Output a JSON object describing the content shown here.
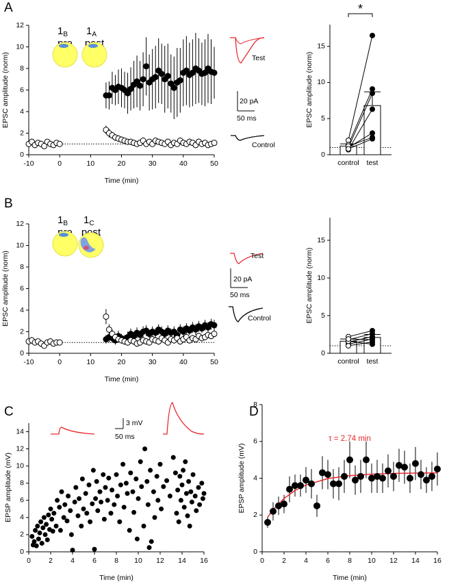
{
  "chart_data": [
    {
      "type": "scatter",
      "panel_label": "A",
      "xlabel": "Time (min)",
      "ylabel": "EPSC amplitude (norm)",
      "xlim": [
        -10,
        50
      ],
      "ylim": [
        0,
        12
      ],
      "xticks": [
        -10,
        0,
        10,
        20,
        30,
        40,
        50
      ],
      "yticks": [
        0,
        2,
        4,
        6,
        8,
        10,
        12
      ],
      "reference_line": 1,
      "cells": [
        {
          "number": "1",
          "sub": "B",
          "role": "pre"
        },
        {
          "number": "1",
          "sub": "A",
          "role": "post"
        }
      ],
      "traces": {
        "test": "Test",
        "control": "Control",
        "scale_y": "20 pA",
        "scale_x": "50 ms"
      },
      "series": [
        {
          "marker": "filled",
          "color": "#000000",
          "x": [
            15,
            16,
            17,
            18,
            19,
            20,
            21,
            22,
            23,
            24,
            25,
            26,
            27,
            28,
            29,
            30,
            31,
            32,
            33,
            34,
            35,
            36,
            37,
            38,
            39,
            40,
            41,
            42,
            43,
            44,
            45,
            46,
            47,
            48,
            49,
            50
          ],
          "values": [
            5.5,
            5.5,
            6.2,
            6.0,
            6.3,
            6.2,
            6.0,
            5.7,
            6.1,
            6.5,
            6.8,
            6.4,
            7.0,
            8.2,
            6.7,
            7.0,
            7.2,
            7.8,
            7.5,
            7.0,
            7.3,
            6.6,
            6.2,
            6.7,
            6.9,
            7.6,
            7.8,
            7.4,
            7.6,
            8.0,
            7.8,
            7.5,
            7.6,
            8.0,
            7.7,
            7.6
          ],
          "errors": [
            1.2,
            1.3,
            1.5,
            1.4,
            1.6,
            1.8,
            1.7,
            1.9,
            2.0,
            2.2,
            2.4,
            2.3,
            2.5,
            2.7,
            2.6,
            2.8,
            2.9,
            3.0,
            2.8,
            3.1,
            3.0,
            2.7,
            2.9,
            3.2,
            3.0,
            3.1,
            3.2,
            3.0,
            3.1,
            3.3,
            3.0,
            2.9,
            3.1,
            3.2,
            3.0,
            2.4
          ]
        },
        {
          "marker": "open",
          "color": "#000000",
          "x": [
            -10,
            -9,
            -8,
            -7,
            -6,
            -5,
            -4,
            -3,
            -2,
            -1,
            0,
            15,
            16,
            17,
            18,
            19,
            20,
            21,
            22,
            23,
            24,
            25,
            26,
            27,
            28,
            29,
            30,
            31,
            32,
            33,
            34,
            35,
            36,
            37,
            38,
            39,
            40,
            41,
            42,
            43,
            44,
            45,
            46,
            47,
            48,
            49,
            50
          ],
          "values": [
            1.0,
            1.2,
            0.9,
            1.1,
            1.0,
            0.8,
            1.2,
            1.0,
            0.9,
            1.1,
            1.0,
            2.3,
            2.0,
            1.8,
            1.6,
            1.5,
            1.4,
            1.3,
            1.2,
            1.2,
            1.1,
            1.0,
            1.1,
            1.3,
            1.0,
            1.2,
            1.0,
            1.3,
            1.2,
            1.1,
            1.0,
            1.2,
            0.9,
            1.1,
            1.0,
            1.3,
            1.1,
            1.0,
            1.2,
            1.1,
            0.9,
            1.2,
            1.0,
            1.1,
            0.9,
            1.0,
            1.1
          ],
          "errors": [
            0.2,
            0.3,
            0.2,
            0.2,
            0.3,
            0.2,
            0.2,
            0.3,
            0.2,
            0.2,
            0.2,
            0.4,
            0.4,
            0.3,
            0.3,
            0.3,
            0.3,
            0.2,
            0.2,
            0.3,
            0.2,
            0.2,
            0.2,
            0.3,
            0.2,
            0.2,
            0.2,
            0.3,
            0.2,
            0.2,
            0.2,
            0.3,
            0.2,
            0.2,
            0.2,
            0.3,
            0.2,
            0.2,
            0.3,
            0.2,
            0.2,
            0.3,
            0.2,
            0.2,
            0.2,
            0.2,
            0.2
          ]
        }
      ]
    },
    {
      "type": "bar",
      "ylabel": "EPSC amplitude (norm)",
      "categories": [
        "control",
        "test"
      ],
      "values": [
        1.2,
        6.8
      ],
      "errors": [
        0.3,
        1.9
      ],
      "points": [
        [
          2.0,
          1.4,
          1.0,
          0.7,
          1.0,
          1.2,
          0.8
        ],
        [
          16.5,
          9.1,
          8.5,
          6.3,
          3.0,
          2.4,
          2.2
        ]
      ],
      "ylim": [
        0,
        18
      ],
      "yticks": [
        0,
        5,
        10,
        15
      ],
      "reference_line": 1,
      "significance": "*"
    },
    {
      "type": "scatter",
      "panel_label": "B",
      "xlabel": "Time (min)",
      "ylabel": "EPSC amplitude (norm)",
      "xlim": [
        -10,
        50
      ],
      "ylim": [
        0,
        12
      ],
      "xticks": [
        -10,
        0,
        10,
        20,
        30,
        40,
        50
      ],
      "yticks": [
        0,
        2,
        4,
        6,
        8,
        10,
        12
      ],
      "reference_line": 1,
      "cells": [
        {
          "number": "1",
          "sub": "B",
          "role": "pre"
        },
        {
          "number": "1",
          "sub": "C",
          "role": "post"
        }
      ],
      "traces": {
        "test": "Test",
        "control": "Control",
        "scale_y": "20 pA",
        "scale_x": "50 ms"
      },
      "series": [
        {
          "marker": "filled",
          "color": "#000000",
          "x": [
            15,
            16,
            17,
            18,
            19,
            20,
            21,
            22,
            23,
            24,
            25,
            26,
            27,
            28,
            29,
            30,
            31,
            32,
            33,
            34,
            35,
            36,
            37,
            38,
            39,
            40,
            41,
            42,
            43,
            44,
            45,
            46,
            47,
            48,
            49,
            50
          ],
          "values": [
            1.3,
            1.5,
            1.4,
            1.2,
            1.6,
            1.4,
            1.3,
            1.5,
            1.8,
            1.6,
            1.9,
            1.7,
            2.0,
            2.1,
            1.8,
            2.0,
            1.9,
            2.2,
            2.0,
            1.8,
            2.1,
            1.9,
            2.0,
            1.7,
            2.2,
            2.0,
            2.3,
            2.1,
            2.4,
            2.2,
            2.5,
            2.3,
            2.6,
            2.4,
            2.7,
            2.6
          ],
          "errors": [
            0.4,
            0.5,
            0.4,
            0.4,
            0.5,
            0.4,
            0.4,
            0.5,
            0.5,
            0.4,
            0.5,
            0.4,
            0.5,
            0.5,
            0.4,
            0.5,
            0.4,
            0.5,
            0.5,
            0.4,
            0.5,
            0.4,
            0.5,
            0.4,
            0.5,
            0.5,
            0.5,
            0.4,
            0.5,
            0.5,
            0.5,
            0.4,
            0.5,
            0.5,
            0.5,
            0.5
          ]
        },
        {
          "marker": "open",
          "color": "#000000",
          "x": [
            -10,
            -9,
            -8,
            -7,
            -6,
            -5,
            -4,
            -3,
            -2,
            -1,
            0,
            15,
            16,
            17,
            18,
            19,
            20,
            21,
            22,
            23,
            24,
            25,
            26,
            27,
            28,
            29,
            30,
            31,
            32,
            33,
            34,
            35,
            36,
            37,
            38,
            39,
            40,
            41,
            42,
            43,
            44,
            45,
            46,
            47,
            48,
            49,
            50
          ],
          "values": [
            1.1,
            1.2,
            1.0,
            1.1,
            0.9,
            0.7,
            1.0,
            1.1,
            0.9,
            1.0,
            1.0,
            3.4,
            2.2,
            1.8,
            1.5,
            1.3,
            1.2,
            1.1,
            1.0,
            1.2,
            1.1,
            0.9,
            1.0,
            1.2,
            1.1,
            1.0,
            1.3,
            1.2,
            1.1,
            1.4,
            1.2,
            1.0,
            1.3,
            1.2,
            1.4,
            1.1,
            1.3,
            1.5,
            1.2,
            1.4,
            1.3,
            1.6,
            1.4,
            1.5,
            1.7,
            1.6,
            1.8
          ],
          "errors": [
            0.2,
            0.3,
            0.2,
            0.2,
            0.3,
            0.2,
            0.2,
            0.3,
            0.2,
            0.2,
            0.2,
            0.7,
            0.5,
            0.4,
            0.3,
            0.3,
            0.3,
            0.3,
            0.3,
            0.3,
            0.3,
            0.3,
            0.3,
            0.3,
            0.3,
            0.3,
            0.3,
            0.3,
            0.3,
            0.3,
            0.3,
            0.3,
            0.3,
            0.3,
            0.3,
            0.3,
            0.3,
            0.3,
            0.3,
            0.3,
            0.3,
            0.3,
            0.3,
            0.3,
            0.3,
            0.3,
            0.3
          ]
        }
      ]
    },
    {
      "type": "bar",
      "ylabel": "EPSC amplitude (norm)",
      "categories": [
        "control",
        "test"
      ],
      "values": [
        1.6,
        2.1
      ],
      "errors": [
        0.3,
        0.4
      ],
      "points": [
        [
          2.2,
          1.8,
          1.5,
          1.2,
          1.0,
          1.6,
          1.9
        ],
        [
          3.0,
          2.6,
          2.2,
          1.9,
          1.5,
          1.2,
          1.8
        ]
      ],
      "ylim": [
        0,
        18
      ],
      "yticks": [
        0,
        5,
        10,
        15
      ],
      "reference_line": 1
    },
    {
      "type": "scatter",
      "panel_label": "C",
      "xlabel": "Time (min)",
      "ylabel": "EPSP amplitude (mV)",
      "xlim": [
        0,
        16
      ],
      "ylim": [
        0,
        15
      ],
      "xticks": [
        0,
        2,
        4,
        6,
        8,
        10,
        12,
        14,
        16
      ],
      "yticks": [
        0,
        2,
        4,
        6,
        8,
        10,
        12,
        14
      ],
      "traces": {
        "scale_y": "3 mV",
        "scale_x": "50 ms"
      },
      "series": [
        {
          "marker": "filled",
          "color": "#000000",
          "x": [
            0.3,
            0.4,
            0.5,
            0.6,
            0.7,
            0.8,
            0.9,
            1.0,
            1.1,
            1.2,
            1.3,
            1.4,
            1.5,
            1.6,
            1.7,
            1.8,
            1.9,
            2.0,
            2.1,
            2.2,
            2.3,
            2.5,
            2.6,
            2.8,
            2.9,
            3.0,
            3.2,
            3.3,
            3.5,
            3.6,
            3.8,
            3.9,
            4.0,
            4.2,
            4.3,
            4.5,
            4.6,
            4.8,
            4.9,
            5.0,
            5.2,
            5.3,
            5.5,
            5.6,
            5.8,
            5.9,
            6.0,
            6.1,
            6.2,
            6.3,
            6.5,
            6.6,
            6.8,
            6.9,
            7.0,
            7.2,
            7.3,
            7.5,
            7.6,
            7.8,
            8.0,
            8.1,
            8.3,
            8.4,
            8.6,
            8.7,
            8.9,
            9.0,
            9.2,
            9.3,
            9.5,
            9.6,
            9.8,
            9.9,
            10.0,
            10.2,
            10.3,
            10.5,
            10.6,
            10.8,
            10.9,
            11.0,
            11.1,
            11.2,
            11.4,
            11.5,
            11.7,
            11.8,
            12.0,
            12.1,
            12.3,
            12.6,
            12.9,
            13.2,
            13.4,
            13.5,
            13.6,
            13.7,
            13.8,
            13.9,
            14.0,
            14.1,
            14.2,
            14.3,
            14.4,
            14.5,
            14.6,
            14.7,
            14.8,
            14.9,
            15.0,
            15.2,
            15.3,
            15.5,
            15.6,
            15.8,
            15.9,
            16.0
          ],
          "values": [
            1.8,
            0.8,
            1.2,
            2.5,
            0.7,
            3.0,
            1.5,
            2.2,
            3.5,
            1.0,
            2.8,
            4.0,
            2.0,
            3.2,
            1.4,
            4.3,
            2.6,
            5.0,
            3.8,
            2.4,
            4.5,
            3.0,
            6.0,
            5.2,
            2.5,
            7.0,
            4.0,
            5.5,
            3.6,
            6.5,
            4.8,
            2.0,
            0.2,
            5.8,
            7.5,
            4.2,
            6.2,
            3.0,
            8.5,
            5.0,
            6.8,
            4.5,
            7.8,
            3.5,
            5.6,
            9.5,
            0.3,
            6.2,
            8.2,
            4.8,
            7.0,
            5.8,
            9.0,
            3.8,
            7.5,
            6.0,
            8.6,
            4.5,
            7.2,
            5.5,
            9.0,
            6.5,
            3.5,
            7.8,
            10.2,
            5.2,
            8.0,
            6.8,
            2.5,
            9.2,
            7.0,
            4.6,
            8.5,
            1.5,
            6.2,
            10.5,
            7.6,
            3.0,
            12.0,
            8.2,
            5.5,
            0.5,
            9.5,
            1.2,
            7.0,
            4.0,
            8.8,
            6.0,
            10.2,
            5.0,
            7.6,
            8.3,
            6.5,
            11.0,
            9.2,
            4.5,
            7.2,
            3.5,
            8.8,
            6.0,
            7.8,
            9.5,
            5.2,
            10.5,
            6.8,
            4.2,
            8.2,
            3.0,
            7.0,
            5.8,
            9.0,
            6.5,
            4.8,
            7.5,
            5.5,
            8.0,
            6.2,
            6.8
          ]
        }
      ]
    },
    {
      "type": "scatter",
      "panel_label": "D",
      "xlabel": "Time (min)",
      "ylabel": "EPSP amplitude (mV)",
      "xlim": [
        0,
        16
      ],
      "ylim": [
        0,
        8
      ],
      "xticks": [
        0,
        2,
        4,
        6,
        8,
        10,
        12,
        14,
        16
      ],
      "yticks": [
        0,
        2,
        4,
        6,
        8
      ],
      "annotation": "τ = 2.74 min",
      "annotation_color": "#e8262d",
      "series": [
        {
          "marker": "filled",
          "color": "#000000",
          "x": [
            0.5,
            1.0,
            1.5,
            2.0,
            2.5,
            3.0,
            3.5,
            4.0,
            4.5,
            5.0,
            5.5,
            6.0,
            6.5,
            7.0,
            7.5,
            8.0,
            8.5,
            9.0,
            9.5,
            10.0,
            10.5,
            11.0,
            11.5,
            12.0,
            12.5,
            13.0,
            13.5,
            14.0,
            14.5,
            15.0,
            15.5,
            16.0
          ],
          "values": [
            1.6,
            2.2,
            2.5,
            2.6,
            3.4,
            3.6,
            3.6,
            3.9,
            3.7,
            2.5,
            4.3,
            4.2,
            3.7,
            3.7,
            4.1,
            5.0,
            3.9,
            4.1,
            5.0,
            4.0,
            4.1,
            4.0,
            4.4,
            4.1,
            4.7,
            4.6,
            4.0,
            4.8,
            4.2,
            3.9,
            4.1,
            4.5
          ],
          "errors": [
            0.3,
            0.5,
            0.5,
            0.5,
            0.7,
            0.6,
            0.6,
            0.7,
            0.8,
            0.6,
            0.9,
            0.8,
            0.8,
            0.9,
            0.9,
            1.0,
            0.8,
            0.9,
            1.0,
            0.8,
            0.9,
            0.8,
            0.9,
            0.8,
            0.9,
            0.9,
            0.8,
            0.9,
            0.8,
            0.7,
            0.8,
            0.9
          ]
        }
      ],
      "fit": {
        "color": "#e8262d",
        "x": [
          0.5,
          1,
          2,
          3,
          4,
          6,
          8,
          10,
          12,
          14,
          16
        ],
        "values": [
          1.88,
          2.29,
          2.9,
          3.33,
          3.63,
          3.98,
          4.14,
          4.22,
          4.26,
          4.28,
          4.29
        ]
      }
    }
  ]
}
